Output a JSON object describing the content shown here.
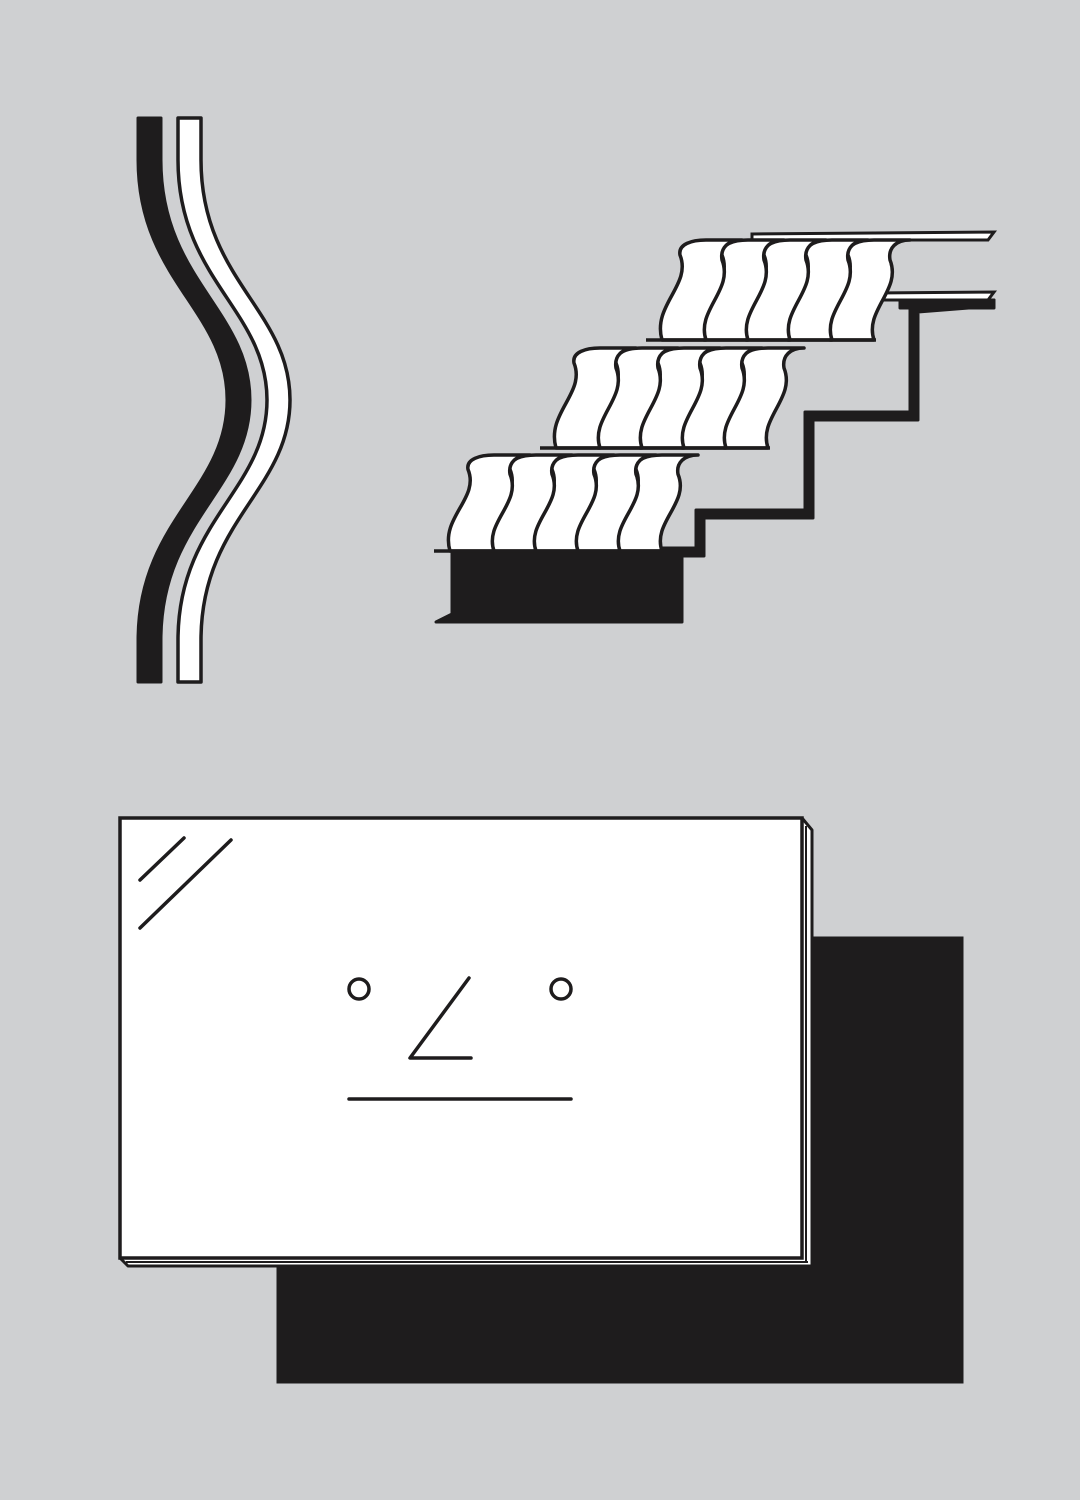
{
  "colors": {
    "background": "#cfd0d2",
    "ink": "#1e1c1d",
    "paper": "#ffffff"
  },
  "elements": {
    "wavy_strips": {
      "icon": "wavy-parallel-strips"
    },
    "wave_stairs": {
      "icon": "wavy-staircase",
      "steps": 3,
      "waves_per_step": 5
    },
    "face_panel": {
      "icon": "glass-panel-face",
      "face": {
        "eyes": 2,
        "nose": "angled",
        "mouth": "straight-line"
      },
      "glare_lines": 2
    }
  }
}
